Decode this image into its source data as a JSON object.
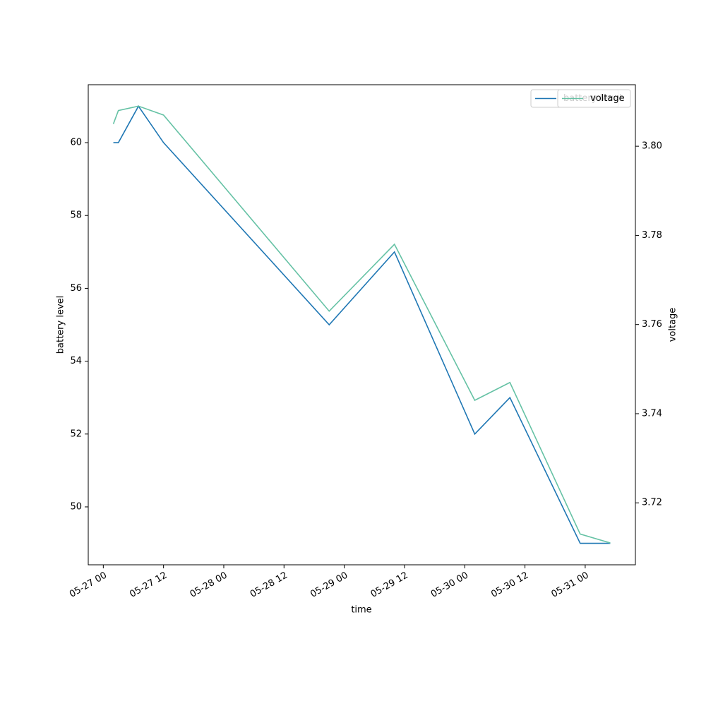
{
  "chart_data": {
    "type": "line",
    "x_label": "time",
    "y_label": "battery level",
    "y2_label": "voltage",
    "x": [
      "05-27 02",
      "05-27 03",
      "05-27 07",
      "05-27 12",
      "05-28 21",
      "05-29 10",
      "05-30 02",
      "05-30 09",
      "05-30 23",
      "05-31 05"
    ],
    "series": [
      {
        "name": "battery level",
        "color": "#1f77b4",
        "values": [
          60,
          60,
          61,
          60,
          55,
          57,
          52,
          53,
          49,
          49
        ]
      },
      {
        "name": "voltage",
        "color": "#66c2a5",
        "axis": "y2",
        "values": [
          3.805,
          3.808,
          3.809,
          3.807,
          3.763,
          3.778,
          3.743,
          3.747,
          3.713,
          3.711
        ]
      }
    ],
    "xlim": [
      "05-26 21",
      "05-31 10"
    ],
    "xticks": [
      "05-27 00",
      "05-27 12",
      "05-28 00",
      "05-28 12",
      "05-29 00",
      "05-29 12",
      "05-30 00",
      "05-30 12",
      "05-31 00"
    ],
    "ylim": [
      48.41,
      61.59
    ],
    "yticks": [
      50,
      52,
      54,
      56,
      58,
      60
    ],
    "y2lim": [
      3.7061,
      3.8138
    ],
    "y2ticks": [
      3.72,
      3.74,
      3.76,
      3.78,
      {
        "value": 3.8,
        "label": "3.80"
      }
    ],
    "legend": "upper right",
    "grid": false
  }
}
